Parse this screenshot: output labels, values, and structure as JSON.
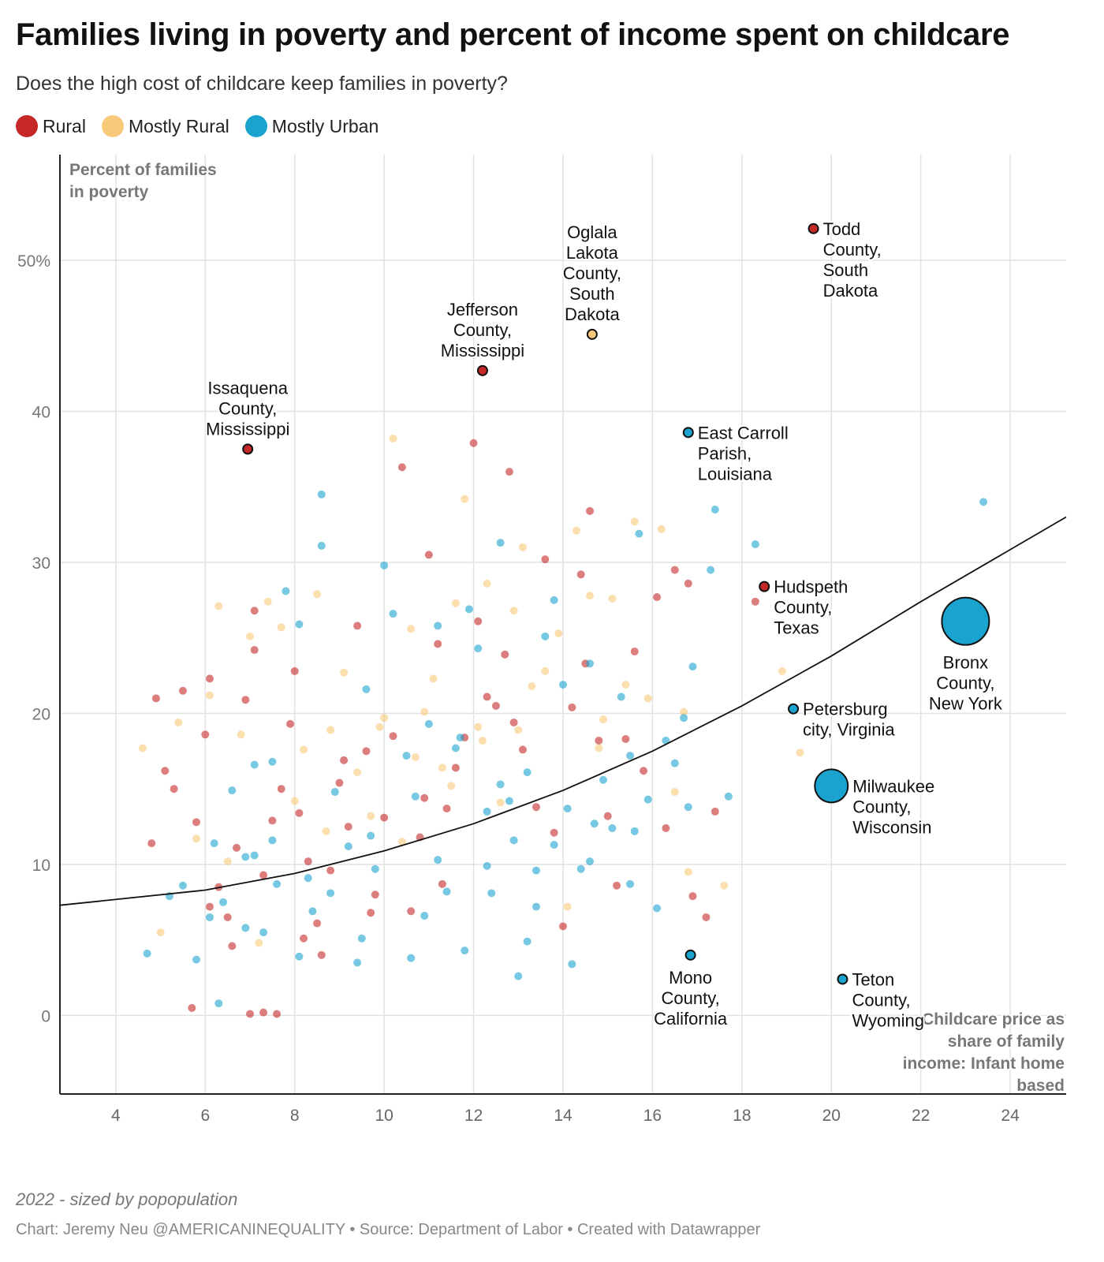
{
  "header": {
    "title": "Families living in poverty and percent of income spent on childcare",
    "subtitle": "Does the high cost of childcare keep families in poverty?"
  },
  "legend": [
    {
      "label": "Rural",
      "color": "#c62828"
    },
    {
      "label": "Mostly Rural",
      "color": "#f9c97a"
    },
    {
      "label": "Mostly Urban",
      "color": "#1ba3d0"
    }
  ],
  "footer": {
    "note": "2022 - sized by popopulation",
    "credit": "Chart: Jeremy Neu @AMERICANINEQUALITY • Source: Department of Labor • Created with Datawrapper"
  },
  "chart_data": {
    "type": "scatter",
    "title": "Families living in poverty and percent of income spent on childcare",
    "xlabel": "Childcare price as share of family income: Infant home based",
    "ylabel": "Percent of families in poverty",
    "xlim": [
      2.75,
      25.25
    ],
    "ylim": [
      -5.2,
      57
    ],
    "x_ticks": [
      4,
      6,
      8,
      10,
      12,
      14,
      16,
      18,
      20,
      22,
      24
    ],
    "y_ticks": [
      0,
      10,
      20,
      30,
      40,
      50
    ],
    "y_tick_labels": [
      "0",
      "10",
      "20",
      "30",
      "40",
      "50%"
    ],
    "grid": true,
    "legend_position": "top-left",
    "trend_line": [
      [
        2.75,
        7.3
      ],
      [
        6,
        8.3
      ],
      [
        8,
        9.4
      ],
      [
        10,
        10.9
      ],
      [
        12,
        12.7
      ],
      [
        14,
        14.9
      ],
      [
        16,
        17.5
      ],
      [
        18,
        20.5
      ],
      [
        20,
        23.8
      ],
      [
        22,
        27.4
      ],
      [
        25.25,
        33.0
      ]
    ],
    "labeled_points": [
      {
        "name": "Todd County, South Dakota",
        "lines": [
          "Todd",
          "County,",
          "South",
          "Dakota"
        ],
        "x": 19.6,
        "y": 52.1,
        "size": 1,
        "category": "Rural",
        "label_pos": "right"
      },
      {
        "name": "Oglala Lakota County, South Dakota",
        "lines": [
          "Oglala",
          "Lakota",
          "County,",
          "South",
          "Dakota"
        ],
        "x": 14.65,
        "y": 45.1,
        "size": 1,
        "category": "Mostly Rural",
        "label_pos": "above"
      },
      {
        "name": "Jefferson County, Mississippi",
        "lines": [
          "Jefferson",
          "County,",
          "Mississippi"
        ],
        "x": 12.2,
        "y": 42.7,
        "size": 1,
        "category": "Rural",
        "label_pos": "above"
      },
      {
        "name": "Issaquena County, Mississippi",
        "lines": [
          "Issaquena",
          "County,",
          "Mississippi"
        ],
        "x": 6.95,
        "y": 37.5,
        "size": 1,
        "category": "Rural",
        "label_pos": "above"
      },
      {
        "name": "East Carroll Parish, Louisiana",
        "lines": [
          "East Carroll",
          "Parish,",
          "Louisiana"
        ],
        "x": 16.8,
        "y": 38.6,
        "size": 1,
        "category": "Mostly Urban",
        "label_pos": "right"
      },
      {
        "name": "Hudspeth County, Texas",
        "lines": [
          "Hudspeth",
          "County,",
          "Texas"
        ],
        "x": 18.5,
        "y": 28.4,
        "size": 1,
        "category": "Rural",
        "label_pos": "right"
      },
      {
        "name": "Bronx County, New York",
        "lines": [
          "Bronx",
          "County,",
          "New York"
        ],
        "x": 23.0,
        "y": 26.1,
        "size": 5,
        "category": "Mostly Urban",
        "label_pos": "below"
      },
      {
        "name": "Petersburg city, Virginia",
        "lines": [
          "Petersburg",
          "city, Virginia"
        ],
        "x": 19.15,
        "y": 20.3,
        "size": 1,
        "category": "Mostly Urban",
        "label_pos": "right"
      },
      {
        "name": "Milwaukee County, Wisconsin",
        "lines": [
          "Milwaukee",
          "County,",
          "Wisconsin"
        ],
        "x": 20.0,
        "y": 15.2,
        "size": 3.5,
        "category": "Mostly Urban",
        "label_pos": "right"
      },
      {
        "name": "Mono County, California",
        "lines": [
          "Mono",
          "County,",
          "California"
        ],
        "x": 16.85,
        "y": 4.0,
        "size": 1,
        "category": "Mostly Urban",
        "label_pos": "below"
      },
      {
        "name": "Teton County, Wyoming",
        "lines": [
          "Teton",
          "County,",
          "Wyoming"
        ],
        "x": 20.25,
        "y": 2.4,
        "size": 1,
        "category": "Mostly Urban",
        "label_pos": "right"
      }
    ],
    "series": [
      {
        "name": "Rural",
        "color": "#c62828",
        "points": [
          [
            4.8,
            11.4
          ],
          [
            4.9,
            21
          ],
          [
            5.1,
            16.2
          ],
          [
            5.3,
            15
          ],
          [
            5.5,
            21.5
          ],
          [
            5.8,
            12.8
          ],
          [
            6,
            18.6
          ],
          [
            6.1,
            22.3
          ],
          [
            6.3,
            8.5
          ],
          [
            6.5,
            6.5
          ],
          [
            6.6,
            4.6
          ],
          [
            6.7,
            11.1
          ],
          [
            6.9,
            20.9
          ],
          [
            7.1,
            24.2
          ],
          [
            7.1,
            26.8
          ],
          [
            7.3,
            9.3
          ],
          [
            7.5,
            12.9
          ],
          [
            7.7,
            15
          ],
          [
            7.9,
            19.3
          ],
          [
            8,
            22.8
          ],
          [
            8.1,
            13.4
          ],
          [
            8.3,
            10.2
          ],
          [
            8.5,
            6.1
          ],
          [
            8.6,
            4
          ],
          [
            8.8,
            9.6
          ],
          [
            9,
            15.4
          ],
          [
            9.2,
            12.5
          ],
          [
            9.4,
            25.8
          ],
          [
            9.6,
            17.5
          ],
          [
            9.8,
            8
          ],
          [
            10,
            13.1
          ],
          [
            10.2,
            18.5
          ],
          [
            10.4,
            36.3
          ],
          [
            10.6,
            6.9
          ],
          [
            10.8,
            11.8
          ],
          [
            11,
            30.5
          ],
          [
            11.2,
            24.6
          ],
          [
            11.4,
            13.7
          ],
          [
            11.6,
            16.4
          ],
          [
            11.8,
            18.4
          ],
          [
            12,
            37.9
          ],
          [
            12.3,
            21.1
          ],
          [
            12.5,
            20.5
          ],
          [
            12.7,
            23.9
          ],
          [
            12.8,
            36
          ],
          [
            13.1,
            17.6
          ],
          [
            13.4,
            13.8
          ],
          [
            13.6,
            30.2
          ],
          [
            13.8,
            12.1
          ],
          [
            14,
            5.9
          ],
          [
            14.2,
            20.4
          ],
          [
            14.4,
            29.2
          ],
          [
            14.5,
            23.3
          ],
          [
            14.6,
            33.4
          ],
          [
            14.8,
            18.2
          ],
          [
            15,
            13.2
          ],
          [
            15.2,
            8.6
          ],
          [
            15.4,
            18.3
          ],
          [
            15.6,
            24.1
          ],
          [
            15.8,
            16.2
          ],
          [
            16.1,
            27.7
          ],
          [
            16.3,
            12.4
          ],
          [
            16.5,
            29.5
          ],
          [
            16.8,
            28.6
          ],
          [
            16.9,
            7.9
          ],
          [
            17.2,
            6.5
          ],
          [
            17.4,
            13.5
          ],
          [
            18.3,
            27.4
          ],
          [
            5.7,
            0.5
          ],
          [
            7,
            0.1
          ],
          [
            7.3,
            0.2
          ],
          [
            7.6,
            0.1
          ],
          [
            12.1,
            26.1
          ],
          [
            12.9,
            19.4
          ],
          [
            9.1,
            16.9
          ],
          [
            10.9,
            14.4
          ],
          [
            6.1,
            7.2
          ],
          [
            8.2,
            5.1
          ],
          [
            9.7,
            6.8
          ],
          [
            11.3,
            8.7
          ]
        ]
      },
      {
        "name": "Mostly Rural",
        "color": "#f9c97a",
        "points": [
          [
            4.6,
            17.7
          ],
          [
            5,
            5.5
          ],
          [
            5.4,
            19.4
          ],
          [
            5.8,
            11.7
          ],
          [
            6.1,
            21.2
          ],
          [
            6.3,
            27.1
          ],
          [
            6.5,
            10.2
          ],
          [
            6.8,
            18.6
          ],
          [
            7,
            25.1
          ],
          [
            7.2,
            4.8
          ],
          [
            7.4,
            27.4
          ],
          [
            7.7,
            25.7
          ],
          [
            8,
            14.2
          ],
          [
            8.2,
            17.6
          ],
          [
            8.5,
            27.9
          ],
          [
            8.8,
            18.9
          ],
          [
            9.1,
            22.7
          ],
          [
            9.4,
            16.1
          ],
          [
            9.7,
            13.2
          ],
          [
            10,
            19.7
          ],
          [
            10.2,
            38.2
          ],
          [
            10.4,
            11.5
          ],
          [
            10.6,
            25.6
          ],
          [
            10.9,
            20.1
          ],
          [
            11.1,
            22.3
          ],
          [
            11.3,
            16.4
          ],
          [
            11.6,
            27.3
          ],
          [
            11.8,
            34.2
          ],
          [
            12.1,
            19.1
          ],
          [
            12.3,
            28.6
          ],
          [
            12.6,
            14.1
          ],
          [
            12.9,
            26.8
          ],
          [
            13.1,
            31
          ],
          [
            13.3,
            21.8
          ],
          [
            13.6,
            22.8
          ],
          [
            13.9,
            25.3
          ],
          [
            14.1,
            7.2
          ],
          [
            14.3,
            32.1
          ],
          [
            14.6,
            27.8
          ],
          [
            14.9,
            19.6
          ],
          [
            15.1,
            27.6
          ],
          [
            15.4,
            21.9
          ],
          [
            15.6,
            32.7
          ],
          [
            15.9,
            21
          ],
          [
            16.2,
            32.2
          ],
          [
            16.5,
            14.8
          ],
          [
            16.8,
            9.5
          ],
          [
            18.9,
            22.8
          ],
          [
            19.3,
            17.4
          ],
          [
            17.6,
            8.6
          ],
          [
            16.7,
            20.1
          ],
          [
            12.2,
            18.2
          ],
          [
            11.5,
            15.2
          ],
          [
            10.7,
            17.1
          ],
          [
            9.9,
            19.1
          ],
          [
            8.7,
            12.2
          ],
          [
            13,
            18.9
          ],
          [
            14.8,
            17.7
          ]
        ]
      },
      {
        "name": "Mostly Urban",
        "color": "#1ba3d0",
        "points": [
          [
            4.7,
            4.1
          ],
          [
            5.2,
            7.9
          ],
          [
            5.5,
            8.6
          ],
          [
            5.8,
            3.7
          ],
          [
            6.1,
            6.5
          ],
          [
            6.2,
            11.4
          ],
          [
            6.3,
            0.8
          ],
          [
            6.6,
            14.9
          ],
          [
            6.9,
            10.5
          ],
          [
            7.1,
            16.6
          ],
          [
            7.3,
            5.5
          ],
          [
            7.5,
            16.8
          ],
          [
            7.8,
            28.1
          ],
          [
            8.1,
            25.9
          ],
          [
            8.3,
            9.1
          ],
          [
            8.6,
            34.5
          ],
          [
            8.6,
            31.1
          ],
          [
            8.9,
            14.8
          ],
          [
            9.2,
            11.2
          ],
          [
            9.4,
            3.5
          ],
          [
            9.6,
            21.6
          ],
          [
            9.8,
            9.7
          ],
          [
            10,
            29.8
          ],
          [
            10.2,
            26.6
          ],
          [
            10.5,
            17.2
          ],
          [
            10.7,
            14.5
          ],
          [
            11,
            19.3
          ],
          [
            11.2,
            25.8
          ],
          [
            11.4,
            8.2
          ],
          [
            11.7,
            18.4
          ],
          [
            11.9,
            26.9
          ],
          [
            12.1,
            24.3
          ],
          [
            12.3,
            13.5
          ],
          [
            12.6,
            31.3
          ],
          [
            12.8,
            14.2
          ],
          [
            13,
            2.6
          ],
          [
            13.2,
            16.1
          ],
          [
            13.4,
            9.6
          ],
          [
            13.6,
            25.1
          ],
          [
            13.8,
            27.5
          ],
          [
            14,
            21.9
          ],
          [
            14.2,
            3.4
          ],
          [
            14.4,
            9.7
          ],
          [
            14.6,
            23.3
          ],
          [
            14.9,
            15.6
          ],
          [
            15.1,
            12.4
          ],
          [
            15.3,
            21.1
          ],
          [
            15.5,
            8.7
          ],
          [
            15.7,
            31.9
          ],
          [
            15.9,
            14.3
          ],
          [
            16.1,
            7.1
          ],
          [
            16.3,
            18.2
          ],
          [
            16.5,
            16.7
          ],
          [
            16.7,
            19.7
          ],
          [
            16.9,
            23.1
          ],
          [
            17.3,
            29.5
          ],
          [
            17.4,
            33.5
          ],
          [
            17.7,
            14.5
          ],
          [
            18.3,
            31.2
          ],
          [
            23.4,
            34
          ],
          [
            11.6,
            17.7
          ],
          [
            14.1,
            13.7
          ],
          [
            15.5,
            17.2
          ],
          [
            13.2,
            4.9
          ],
          [
            12.4,
            8.1
          ],
          [
            10.9,
            6.6
          ],
          [
            9.5,
            5.1
          ],
          [
            8.4,
            6.9
          ],
          [
            7.6,
            8.7
          ],
          [
            6.9,
            5.8
          ],
          [
            6.4,
            7.5
          ],
          [
            7.1,
            10.6
          ],
          [
            15.6,
            12.2
          ],
          [
            14.6,
            10.2
          ],
          [
            13.4,
            7.2
          ],
          [
            12.3,
            9.9
          ],
          [
            11.8,
            4.3
          ],
          [
            10.6,
            3.8
          ],
          [
            16.8,
            13.8
          ],
          [
            14.7,
            12.7
          ],
          [
            13.8,
            11.3
          ],
          [
            12.9,
            11.6
          ],
          [
            12.6,
            15.3
          ],
          [
            11.2,
            10.3
          ],
          [
            9.7,
            11.9
          ],
          [
            8.8,
            8.1
          ],
          [
            8.1,
            3.9
          ],
          [
            7.5,
            11.6
          ]
        ]
      }
    ]
  }
}
